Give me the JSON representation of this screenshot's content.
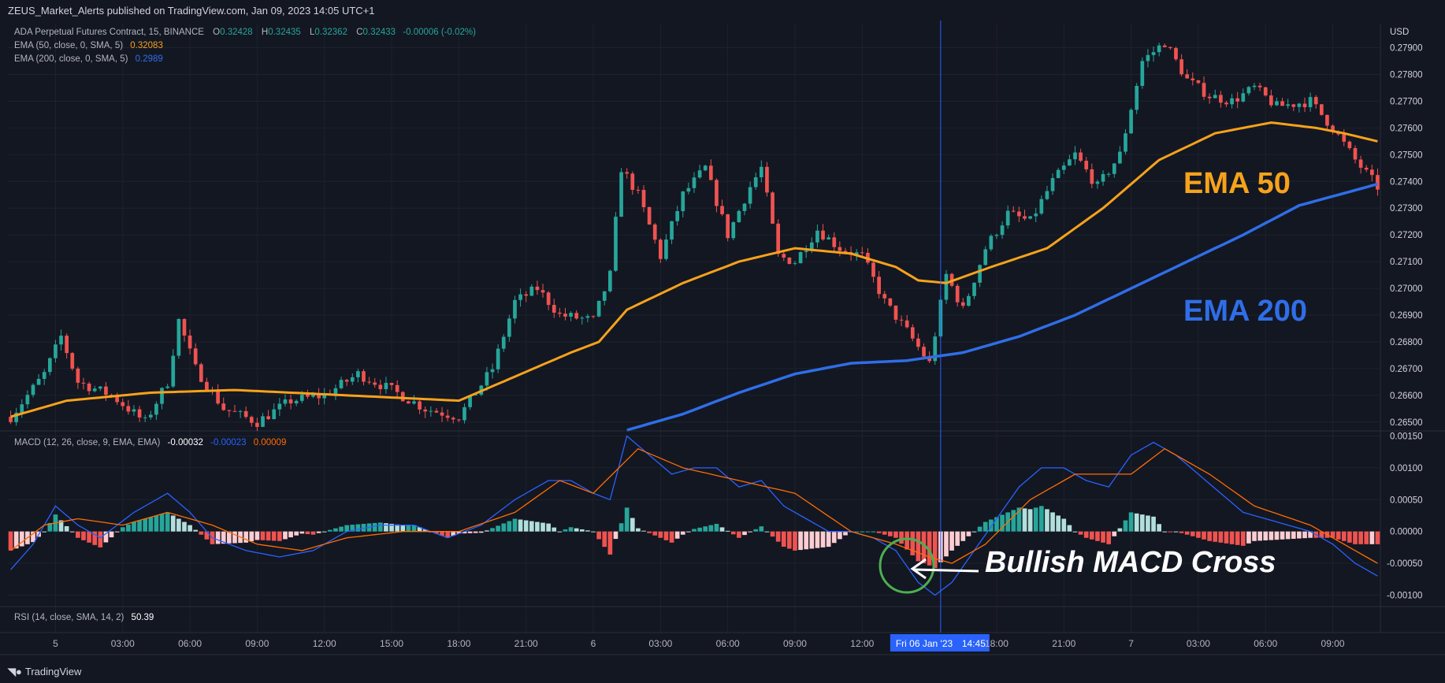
{
  "header": {
    "published": "ZEUS_Market_Alerts published on TradingView.com, Jan 09, 2023 14:05 UTC+1"
  },
  "legend": {
    "symbol": "ADA Perpetual Futures Contract, 15, BINANCE",
    "ohlc": {
      "O": "0.32428",
      "H": "0.32435",
      "L": "0.32362",
      "C": "0.32433",
      "change": "-0.00006 (-0.02%)"
    },
    "ema50": {
      "label": "EMA (50, close, 0, SMA, 5)",
      "value": "0.32083",
      "color": "#f7a21b"
    },
    "ema200": {
      "label": "EMA (200, close, 0, SMA, 5)",
      "value": "0.2989",
      "color": "#2f6ee8"
    },
    "macd": {
      "label": "MACD (12, 26, close, 9, EMA, EMA)",
      "hist": "-0.00032",
      "macd": "-0.00023",
      "signal": "0.00009"
    },
    "rsi": {
      "label": "RSI (14, close, SMA, 14, 2)",
      "value": "50.39"
    }
  },
  "annotations": {
    "ema50": "EMA 50",
    "ema200": "EMA 200",
    "macd_cross": "Bullish MACD Cross"
  },
  "crosshair_label": {
    "date": "Fri 06 Jan '23",
    "time": "14:45"
  },
  "brand": "TradingView",
  "colors": {
    "up": "#26a69a",
    "down": "#ef5350",
    "up_light": "#b2dfdb",
    "down_light": "#ffcdd2",
    "macd_line": "#2962ff",
    "signal_line": "#ff6d00",
    "bg": "#131722",
    "grid": "#1e222d"
  },
  "chart_data": {
    "type": "candlestick",
    "currency_label": "USD",
    "price_ticks": [
      "0.27900",
      "0.27800",
      "0.27700",
      "0.27600",
      "0.27500",
      "0.27400",
      "0.27300",
      "0.27200",
      "0.27100",
      "0.27000",
      "0.26900",
      "0.26800",
      "0.26700",
      "0.26600",
      "0.26500"
    ],
    "price_ylim": [
      0.26467,
      0.2799
    ],
    "macd_ticks": [
      "0.00150",
      "0.00100",
      "0.00050",
      "0.00000",
      "-0.00050",
      "-0.00100"
    ],
    "macd_ylim": [
      -0.00118,
      0.00158
    ],
    "x_ticks": [
      "5",
      "03:00",
      "06:00",
      "09:00",
      "12:00",
      "15:00",
      "18:00",
      "21:00",
      "6",
      "03:00",
      "06:00",
      "09:00",
      "12:00",
      "18:00",
      "21:00",
      "7",
      "03:00",
      "06:00",
      "09:00"
    ],
    "x_tick_bars": [
      8,
      20,
      32,
      44,
      56,
      68,
      80,
      92,
      104,
      116,
      128,
      140,
      152,
      176,
      188,
      200,
      212,
      224,
      236
    ],
    "crosshair_bar": 166,
    "bars": 245,
    "price_keyframes": [
      [
        0,
        0.2652
      ],
      [
        6,
        0.2668
      ],
      [
        9,
        0.2682
      ],
      [
        12,
        0.2665
      ],
      [
        18,
        0.266
      ],
      [
        24,
        0.265
      ],
      [
        28,
        0.2665
      ],
      [
        30,
        0.2688
      ],
      [
        33,
        0.267
      ],
      [
        38,
        0.2655
      ],
      [
        44,
        0.265
      ],
      [
        50,
        0.2658
      ],
      [
        56,
        0.266
      ],
      [
        62,
        0.2668
      ],
      [
        68,
        0.2662
      ],
      [
        74,
        0.2655
      ],
      [
        80,
        0.2652
      ],
      [
        86,
        0.267
      ],
      [
        90,
        0.2695
      ],
      [
        94,
        0.27
      ],
      [
        98,
        0.269
      ],
      [
        104,
        0.2688
      ],
      [
        107,
        0.2705
      ],
      [
        109,
        0.2745
      ],
      [
        112,
        0.2735
      ],
      [
        116,
        0.2712
      ],
      [
        120,
        0.2735
      ],
      [
        124,
        0.2745
      ],
      [
        128,
        0.272
      ],
      [
        132,
        0.2738
      ],
      [
        134,
        0.2745
      ],
      [
        137,
        0.2712
      ],
      [
        140,
        0.271
      ],
      [
        144,
        0.2722
      ],
      [
        148,
        0.2715
      ],
      [
        152,
        0.2712
      ],
      [
        156,
        0.2695
      ],
      [
        160,
        0.2684
      ],
      [
        164,
        0.2672
      ],
      [
        167,
        0.2705
      ],
      [
        170,
        0.2692
      ],
      [
        174,
        0.2715
      ],
      [
        178,
        0.2728
      ],
      [
        182,
        0.2725
      ],
      [
        186,
        0.274
      ],
      [
        190,
        0.275
      ],
      [
        194,
        0.2738
      ],
      [
        198,
        0.275
      ],
      [
        202,
        0.2785
      ],
      [
        206,
        0.2792
      ],
      [
        210,
        0.2778
      ],
      [
        214,
        0.2772
      ],
      [
        218,
        0.277
      ],
      [
        222,
        0.2775
      ],
      [
        226,
        0.2768
      ],
      [
        232,
        0.277
      ],
      [
        236,
        0.276
      ],
      [
        240,
        0.2748
      ],
      [
        244,
        0.2738
      ]
    ],
    "ema50_keyframes": [
      [
        0,
        0.2652
      ],
      [
        10,
        0.2658
      ],
      [
        25,
        0.2661
      ],
      [
        40,
        0.2662
      ],
      [
        60,
        0.266
      ],
      [
        80,
        0.2658
      ],
      [
        90,
        0.2667
      ],
      [
        100,
        0.2676
      ],
      [
        105,
        0.268
      ],
      [
        110,
        0.2692
      ],
      [
        120,
        0.2702
      ],
      [
        130,
        0.271
      ],
      [
        140,
        0.2715
      ],
      [
        150,
        0.2713
      ],
      [
        158,
        0.2708
      ],
      [
        162,
        0.2703
      ],
      [
        167,
        0.2702
      ],
      [
        175,
        0.2708
      ],
      [
        185,
        0.2715
      ],
      [
        195,
        0.273
      ],
      [
        205,
        0.2748
      ],
      [
        215,
        0.2758
      ],
      [
        225,
        0.2762
      ],
      [
        233,
        0.276
      ],
      [
        238,
        0.2758
      ],
      [
        244,
        0.2755
      ]
    ],
    "ema200_keyframes": [
      [
        110,
        0.2647
      ],
      [
        120,
        0.2653
      ],
      [
        130,
        0.2661
      ],
      [
        140,
        0.2668
      ],
      [
        150,
        0.2672
      ],
      [
        160,
        0.2673
      ],
      [
        170,
        0.2676
      ],
      [
        180,
        0.2682
      ],
      [
        190,
        0.269
      ],
      [
        200,
        0.27
      ],
      [
        210,
        0.271
      ],
      [
        220,
        0.272
      ],
      [
        230,
        0.2731
      ],
      [
        244,
        0.2739
      ]
    ],
    "macd_keyframes": [
      [
        0,
        -0.0006
      ],
      [
        4,
        -0.0002
      ],
      [
        8,
        0.0004
      ],
      [
        12,
        0.0001
      ],
      [
        16,
        -0.0001
      ],
      [
        22,
        0.0003
      ],
      [
        28,
        0.0006
      ],
      [
        32,
        0.0003
      ],
      [
        36,
        -0.0001
      ],
      [
        42,
        -0.0003
      ],
      [
        48,
        -0.0004
      ],
      [
        54,
        -0.0003
      ],
      [
        60,
        0.0
      ],
      [
        66,
        0.0001
      ],
      [
        72,
        0.0001
      ],
      [
        78,
        -0.0001
      ],
      [
        84,
        0.0001
      ],
      [
        90,
        0.0005
      ],
      [
        96,
        0.0008
      ],
      [
        100,
        0.0008
      ],
      [
        104,
        0.0006
      ],
      [
        107,
        0.0005
      ],
      [
        110,
        0.0015
      ],
      [
        114,
        0.0012
      ],
      [
        118,
        0.0009
      ],
      [
        122,
        0.001
      ],
      [
        126,
        0.001
      ],
      [
        130,
        0.0007
      ],
      [
        134,
        0.0008
      ],
      [
        138,
        0.0004
      ],
      [
        142,
        0.0002
      ],
      [
        146,
        0.0
      ],
      [
        150,
        0.0
      ],
      [
        154,
        -0.0001
      ],
      [
        158,
        -0.0003
      ],
      [
        162,
        -0.0008
      ],
      [
        165,
        -0.001
      ],
      [
        168,
        -0.0008
      ],
      [
        172,
        -0.0003
      ],
      [
        176,
        0.0002
      ],
      [
        180,
        0.0007
      ],
      [
        184,
        0.001
      ],
      [
        188,
        0.001
      ],
      [
        192,
        0.0008
      ],
      [
        196,
        0.0007
      ],
      [
        200,
        0.0012
      ],
      [
        204,
        0.0014
      ],
      [
        208,
        0.0012
      ],
      [
        212,
        0.0009
      ],
      [
        216,
        0.0006
      ],
      [
        220,
        0.0003
      ],
      [
        224,
        0.0002
      ],
      [
        228,
        0.0001
      ],
      [
        232,
        0.0
      ],
      [
        236,
        -0.0002
      ],
      [
        240,
        -0.0005
      ],
      [
        244,
        -0.0007
      ]
    ],
    "signal_keyframes": [
      [
        0,
        -0.0003
      ],
      [
        6,
        0.0001
      ],
      [
        12,
        0.0002
      ],
      [
        20,
        0.0001
      ],
      [
        28,
        0.0003
      ],
      [
        36,
        0.0001
      ],
      [
        44,
        -0.0002
      ],
      [
        52,
        -0.0003
      ],
      [
        60,
        -0.0001
      ],
      [
        70,
        0.0
      ],
      [
        80,
        0.0
      ],
      [
        90,
        0.0003
      ],
      [
        98,
        0.0008
      ],
      [
        104,
        0.0006
      ],
      [
        112,
        0.0013
      ],
      [
        120,
        0.001
      ],
      [
        130,
        0.0008
      ],
      [
        140,
        0.0006
      ],
      [
        150,
        0.0
      ],
      [
        158,
        -0.0002
      ],
      [
        164,
        -0.0004
      ],
      [
        168,
        -0.0005
      ],
      [
        174,
        -0.0002
      ],
      [
        182,
        0.0005
      ],
      [
        190,
        0.0009
      ],
      [
        200,
        0.0009
      ],
      [
        206,
        0.0013
      ],
      [
        214,
        0.0009
      ],
      [
        222,
        0.0004
      ],
      [
        232,
        0.0001
      ],
      [
        238,
        -0.0002
      ],
      [
        244,
        -0.0005
      ]
    ]
  }
}
